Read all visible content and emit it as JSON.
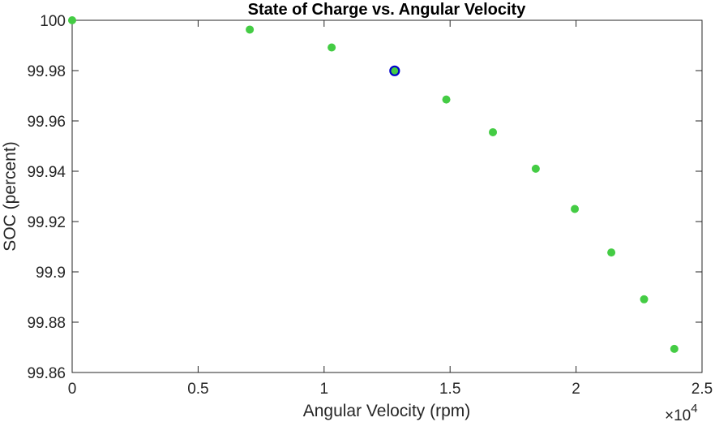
{
  "chart_data": {
    "type": "scatter",
    "title": "State of Charge vs. Angular Velocity",
    "xlabel": "Angular Velocity (rpm)",
    "ylabel": "SOC (percent)",
    "xlim": [
      0,
      2.5
    ],
    "ylim": [
      99.86,
      100
    ],
    "x_ticks": [
      "0",
      "0.5",
      "1",
      "1.5",
      "2",
      "2.5"
    ],
    "y_ticks": [
      "99.86",
      "99.88",
      "99.9",
      "99.92",
      "99.94",
      "99.96",
      "99.98",
      "100"
    ],
    "x_multiplier": {
      "base": "×10",
      "exponent": "4"
    },
    "grid": false,
    "points": [
      {
        "x": 0.0,
        "y": 100.0
      },
      {
        "x": 0.705,
        "y": 99.9963
      },
      {
        "x": 1.03,
        "y": 99.9892
      },
      {
        "x": 1.28,
        "y": 99.9799,
        "highlighted": true
      },
      {
        "x": 1.485,
        "y": 99.9685
      },
      {
        "x": 1.67,
        "y": 99.9555
      },
      {
        "x": 1.84,
        "y": 99.941
      },
      {
        "x": 1.995,
        "y": 99.925
      },
      {
        "x": 2.14,
        "y": 99.9077
      },
      {
        "x": 2.27,
        "y": 99.8891
      },
      {
        "x": 2.39,
        "y": 99.8694
      }
    ],
    "colors": {
      "marker": "#44cc44",
      "highlight_edge": "#0000cc"
    }
  }
}
